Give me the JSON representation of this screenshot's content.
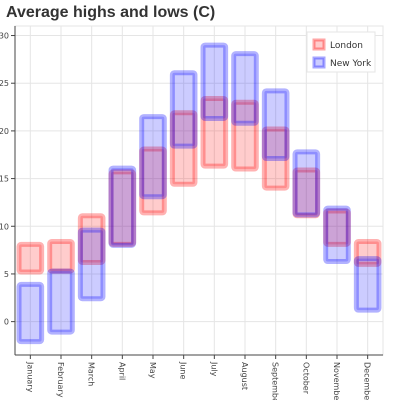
{
  "chart_data": {
    "type": "bar",
    "title": "Average highs and lows (C)",
    "xlabel": "",
    "ylabel": "",
    "categories": [
      "January",
      "February",
      "March",
      "April",
      "May",
      "June",
      "July",
      "August",
      "September",
      "October",
      "November",
      "December"
    ],
    "ylim": [
      -3.5,
      31
    ],
    "yticks": [
      0,
      5,
      10,
      15,
      20,
      25,
      30
    ],
    "grid": true,
    "legend_position": "top-right",
    "series": [
      {
        "name": "London",
        "color": "#ff0000",
        "lows": [
          5.2,
          5.3,
          6.2,
          8.1,
          11.4,
          14.4,
          16.3,
          16.0,
          14.0,
          11.1,
          8.1,
          6.0
        ],
        "highs": [
          8.1,
          8.4,
          11.1,
          15.7,
          18.1,
          21.9,
          23.4,
          23.0,
          20.2,
          15.9,
          11.6,
          8.4
        ]
      },
      {
        "name": "New York",
        "color": "#0000ff",
        "lows": [
          -2.1,
          -1.1,
          2.4,
          8.0,
          13.1,
          18.4,
          21.3,
          20.8,
          17.1,
          11.2,
          6.3,
          1.2
        ],
        "highs": [
          3.9,
          5.3,
          9.6,
          16.1,
          21.5,
          26.1,
          29.0,
          28.1,
          24.2,
          17.8,
          11.9,
          6.6
        ]
      }
    ]
  }
}
